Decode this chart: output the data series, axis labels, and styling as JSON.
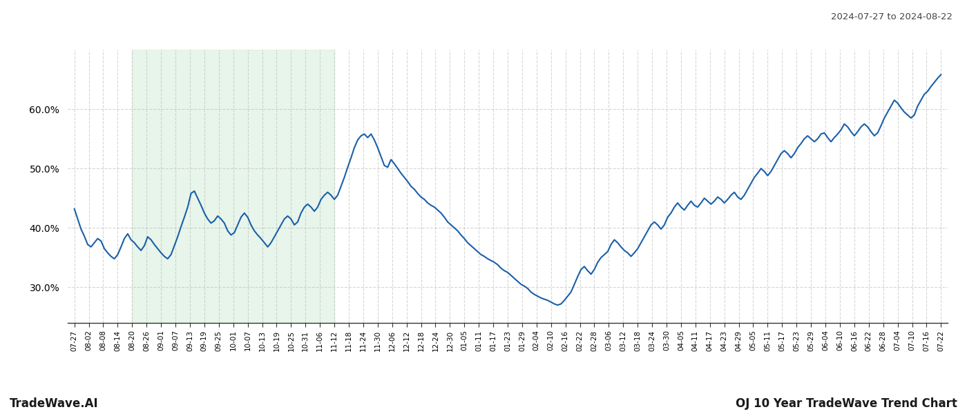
{
  "title_date": "2024-07-27 to 2024-08-22",
  "footer_left": "TradeWave.AI",
  "footer_right": "OJ 10 Year TradeWave Trend Chart",
  "line_color": "#1a5fa8",
  "line_width": 1.5,
  "shading_color": "#d4edda",
  "shading_alpha": 0.55,
  "background_color": "#ffffff",
  "grid_color": "#bbbbbb",
  "grid_style": "--",
  "grid_alpha": 0.6,
  "ylim": [
    24,
    70
  ],
  "yticks": [
    30.0,
    40.0,
    50.0,
    60.0
  ],
  "shading_xstart": 4,
  "shading_xend": 18,
  "x_labels": [
    "07-27",
    "08-02",
    "08-08",
    "08-14",
    "08-20",
    "08-26",
    "09-01",
    "09-07",
    "09-13",
    "09-19",
    "09-25",
    "10-01",
    "10-07",
    "10-13",
    "10-19",
    "10-25",
    "10-31",
    "11-06",
    "11-12",
    "11-18",
    "11-24",
    "11-30",
    "12-06",
    "12-12",
    "12-18",
    "12-24",
    "12-30",
    "01-05",
    "01-11",
    "01-17",
    "01-23",
    "01-29",
    "02-04",
    "02-10",
    "02-16",
    "02-22",
    "02-28",
    "03-06",
    "03-12",
    "03-18",
    "03-24",
    "03-30",
    "04-05",
    "04-11",
    "04-17",
    "04-23",
    "04-29",
    "05-05",
    "05-11",
    "05-17",
    "05-23",
    "05-29",
    "06-04",
    "06-10",
    "06-16",
    "06-22",
    "06-28",
    "07-04",
    "07-10",
    "07-16",
    "07-22"
  ],
  "y_values": [
    43.2,
    41.5,
    39.8,
    38.6,
    37.2,
    36.8,
    37.5,
    38.2,
    37.8,
    36.5,
    35.8,
    35.2,
    34.8,
    35.5,
    36.8,
    38.2,
    39.0,
    38.0,
    37.5,
    36.8,
    36.2,
    37.0,
    38.5,
    38.0,
    37.2,
    36.5,
    35.8,
    35.2,
    34.8,
    35.5,
    37.0,
    38.5,
    40.2,
    41.8,
    43.5,
    45.8,
    46.2,
    45.0,
    43.8,
    42.5,
    41.5,
    40.8,
    41.2,
    42.0,
    41.5,
    40.8,
    39.5,
    38.8,
    39.2,
    40.5,
    41.8,
    42.5,
    41.8,
    40.5,
    39.5,
    38.8,
    38.2,
    37.5,
    36.8,
    37.5,
    38.5,
    39.5,
    40.5,
    41.5,
    42.0,
    41.5,
    40.5,
    41.0,
    42.5,
    43.5,
    44.0,
    43.5,
    42.8,
    43.5,
    44.8,
    45.5,
    46.0,
    45.5,
    44.8,
    45.5,
    47.0,
    48.5,
    50.2,
    51.8,
    53.5,
    54.8,
    55.5,
    55.8,
    55.2,
    55.8,
    54.8,
    53.5,
    52.0,
    50.5,
    50.2,
    51.5,
    50.8,
    50.0,
    49.2,
    48.5,
    47.8,
    47.0,
    46.5,
    45.8,
    45.2,
    44.8,
    44.2,
    43.8,
    43.5,
    43.0,
    42.5,
    41.8,
    41.0,
    40.5,
    40.0,
    39.5,
    38.8,
    38.2,
    37.5,
    37.0,
    36.5,
    36.0,
    35.5,
    35.2,
    34.8,
    34.5,
    34.2,
    33.8,
    33.2,
    32.8,
    32.5,
    32.0,
    31.5,
    31.0,
    30.5,
    30.2,
    29.8,
    29.2,
    28.8,
    28.5,
    28.2,
    28.0,
    27.8,
    27.5,
    27.2,
    27.0,
    27.2,
    27.8,
    28.5,
    29.2,
    30.5,
    31.8,
    33.0,
    33.5,
    32.8,
    32.2,
    33.0,
    34.2,
    35.0,
    35.5,
    36.0,
    37.2,
    38.0,
    37.5,
    36.8,
    36.2,
    35.8,
    35.2,
    35.8,
    36.5,
    37.5,
    38.5,
    39.5,
    40.5,
    41.0,
    40.5,
    39.8,
    40.5,
    41.8,
    42.5,
    43.5,
    44.2,
    43.5,
    43.0,
    43.8,
    44.5,
    43.8,
    43.5,
    44.2,
    45.0,
    44.5,
    44.0,
    44.5,
    45.2,
    44.8,
    44.2,
    44.8,
    45.5,
    46.0,
    45.2,
    44.8,
    45.5,
    46.5,
    47.5,
    48.5,
    49.2,
    50.0,
    49.5,
    48.8,
    49.5,
    50.5,
    51.5,
    52.5,
    53.0,
    52.5,
    51.8,
    52.5,
    53.5,
    54.2,
    55.0,
    55.5,
    55.0,
    54.5,
    55.0,
    55.8,
    56.0,
    55.2,
    54.5,
    55.2,
    55.8,
    56.5,
    57.5,
    57.0,
    56.2,
    55.5,
    56.2,
    57.0,
    57.5,
    57.0,
    56.2,
    55.5,
    56.0,
    57.2,
    58.5,
    59.5,
    60.5,
    61.5,
    61.0,
    60.2,
    59.5,
    59.0,
    58.5,
    59.0,
    60.5,
    61.5,
    62.5,
    63.0,
    63.8,
    64.5,
    65.2,
    65.8
  ]
}
